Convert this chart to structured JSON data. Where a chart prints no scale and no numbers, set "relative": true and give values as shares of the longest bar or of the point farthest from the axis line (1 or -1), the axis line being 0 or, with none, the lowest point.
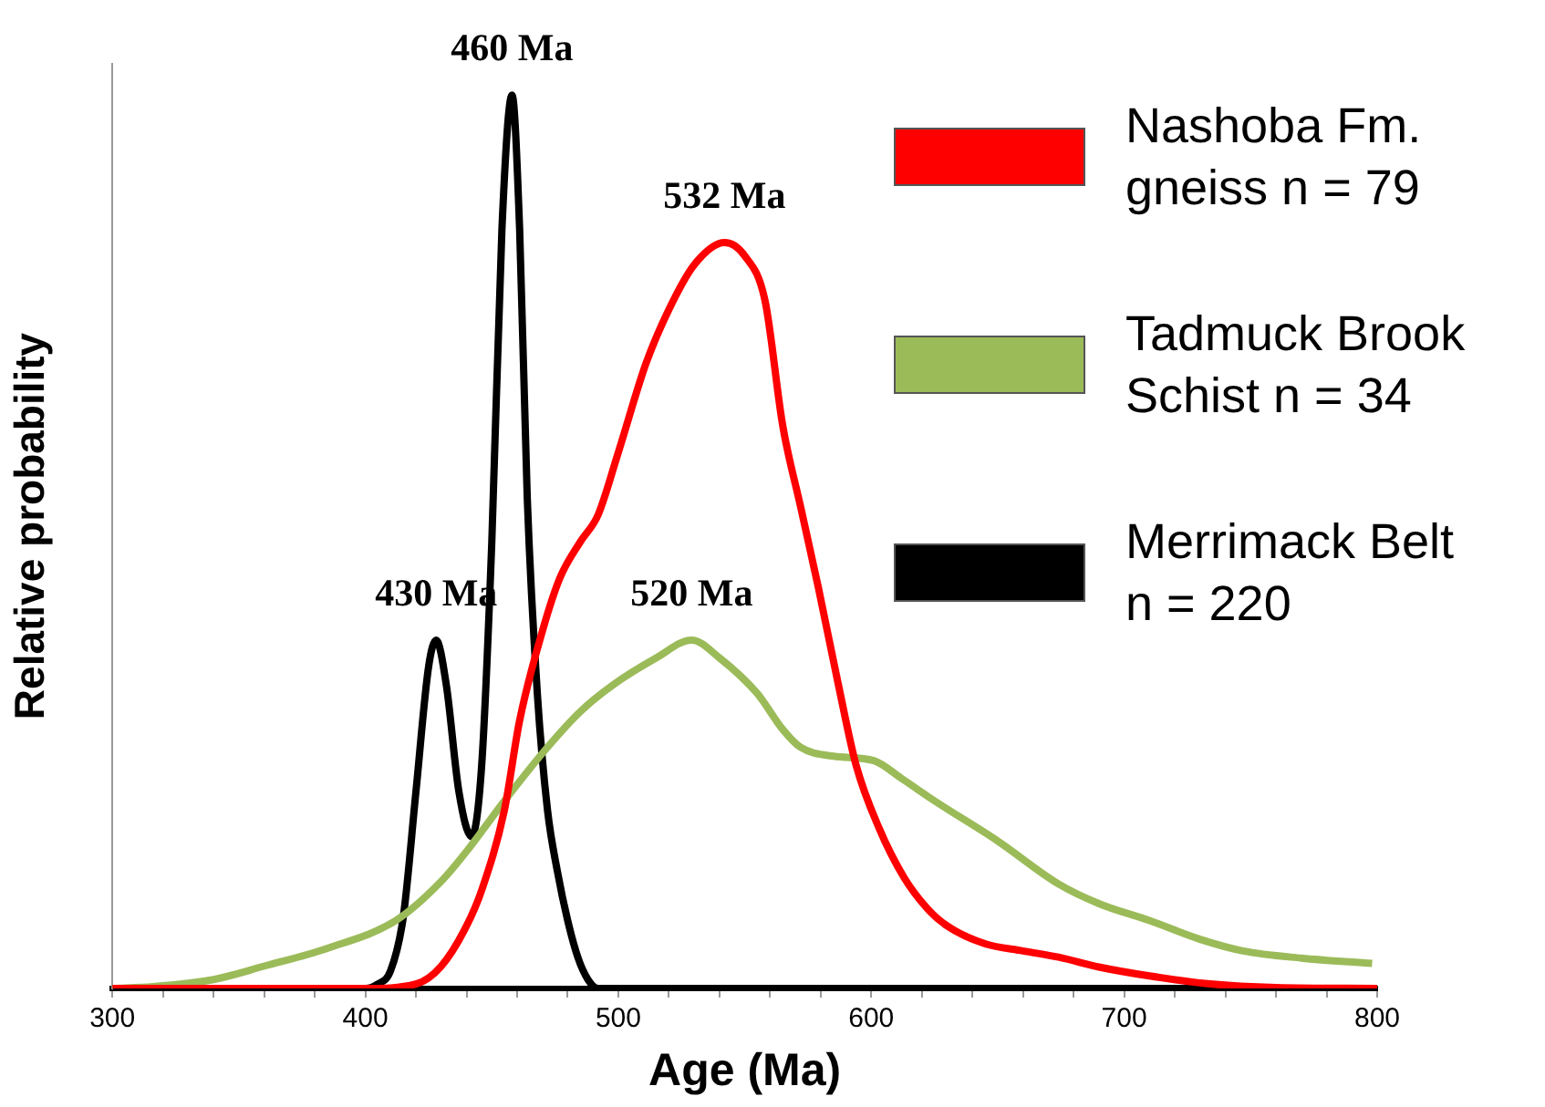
{
  "chart_data": {
    "type": "line",
    "relative": true,
    "xlabel": "Age (Ma)",
    "ylabel": "Relative probability",
    "xlim": [
      300,
      800
    ],
    "xticks": [
      300,
      {
        "value": 320,
        "label": null
      },
      {
        "value": 340,
        "label": null
      },
      {
        "value": 360,
        "label": null
      },
      {
        "value": 380,
        "label": null
      },
      400,
      {
        "value": 420,
        "label": null
      },
      {
        "value": 440,
        "label": null
      },
      {
        "value": 460,
        "label": null
      },
      {
        "value": 480,
        "label": null
      },
      500,
      {
        "value": 520,
        "label": null
      },
      {
        "value": 540,
        "label": null
      },
      {
        "value": 560,
        "label": null
      },
      {
        "value": 580,
        "label": null
      },
      600,
      {
        "value": 620,
        "label": null
      },
      {
        "value": 640,
        "label": null
      },
      {
        "value": 660,
        "label": null
      },
      {
        "value": 680,
        "label": null
      },
      700,
      {
        "value": 720,
        "label": null
      },
      {
        "value": 740,
        "label": null
      },
      {
        "value": 760,
        "label": null
      },
      {
        "value": 780,
        "label": null
      },
      800
    ],
    "legend": "top right",
    "marker": "none",
    "series": [
      {
        "name": "Nashoba Fm. gneiss n = 79",
        "color": "#ff0000",
        "x": [
          300,
          400,
          420,
          430,
          440,
          446,
          455,
          461,
          470,
          477,
          485,
          492,
          500,
          511,
          520,
          530,
          542,
          550,
          558,
          565,
          572,
          579,
          587,
          594,
          603,
          613,
          622,
          630,
          645,
          660,
          674,
          690,
          710,
          734,
          760,
          800
        ],
        "values": [
          0,
          0,
          0.005,
          0.025,
          0.07,
          0.11,
          0.2,
          0.3,
          0.4,
          0.46,
          0.5,
          0.53,
          0.6,
          0.7,
          0.76,
          0.81,
          0.835,
          0.82,
          0.77,
          0.63,
          0.54,
          0.45,
          0.34,
          0.25,
          0.18,
          0.124,
          0.09,
          0.07,
          0.05,
          0.042,
          0.035,
          0.024,
          0.014,
          0.005,
          0.001,
          0
        ]
      },
      {
        "name": "Tadmuck Brook Schist n = 34",
        "color": "#9bbb59",
        "x": [
          300,
          316,
          340,
          360,
          385,
          412,
          430,
          441,
          455,
          472,
          485,
          498,
          515,
          529,
          540,
          555,
          565,
          572,
          585,
          601,
          612,
          625,
          650,
          674,
          690,
          710,
          730,
          747,
          770,
          798
        ],
        "values": [
          0,
          0.002,
          0.01,
          0.025,
          0.045,
          0.076,
          0.12,
          0.157,
          0.21,
          0.27,
          0.31,
          0.34,
          0.37,
          0.39,
          0.37,
          0.33,
          0.29,
          0.27,
          0.26,
          0.255,
          0.235,
          0.21,
          0.165,
          0.117,
          0.095,
          0.076,
          0.055,
          0.042,
          0.034,
          0.028
        ]
      },
      {
        "name": "Merrimack Belt n = 220",
        "color": "#000000",
        "x": [
          300,
          400,
          405,
          410,
          415,
          420,
          425,
          428,
          432,
          437,
          442,
          446,
          450,
          454,
          458,
          461,
          464,
          468,
          472,
          476,
          480,
          484,
          488,
          492,
          800
        ],
        "values": [
          0,
          0,
          0.005,
          0.02,
          0.08,
          0.22,
          0.36,
          0.39,
          0.34,
          0.22,
          0.17,
          0.25,
          0.5,
          0.85,
          1.0,
          0.85,
          0.55,
          0.33,
          0.2,
          0.13,
          0.076,
          0.035,
          0.01,
          0,
          0
        ]
      }
    ],
    "annotations": [
      {
        "text": "460 Ma",
        "x": 458,
        "y": 1.0
      },
      {
        "text": "430 Ma",
        "x": 428,
        "y": 0.39
      },
      {
        "text": "532 Ma",
        "x": 542,
        "y": 0.835
      },
      {
        "text": "520 Ma",
        "x": 529,
        "y": 0.39
      }
    ]
  }
}
